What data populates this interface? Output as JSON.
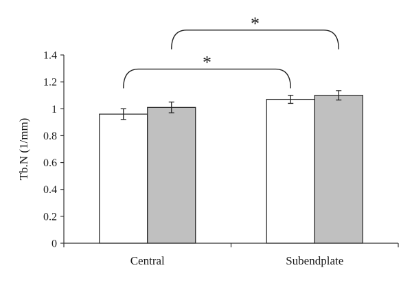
{
  "chart_data": {
    "type": "bar",
    "ylabel": "Tb.N (1/mm)",
    "xlabel": "",
    "title": "",
    "categories": [
      "Central",
      "Subendplate"
    ],
    "ylim": [
      0,
      1.4
    ],
    "yticks": [
      "0",
      "0.2",
      "0.4",
      "0.6",
      "0.8",
      "1",
      "1.2",
      "1.4"
    ],
    "grid": false,
    "legend": "none",
    "series": [
      {
        "color": "#ffffff",
        "values": [
          0.96,
          1.07
        ],
        "errors": [
          0.04,
          0.03
        ]
      },
      {
        "color": "#c0c0c0",
        "values": [
          1.01,
          1.1
        ],
        "errors": [
          0.04,
          0.035
        ]
      }
    ],
    "significance": [
      {
        "label": "*",
        "from_category": 0,
        "from_series": 0,
        "to_category": 1,
        "to_series": 0
      },
      {
        "label": "*",
        "from_category": 0,
        "from_series": 1,
        "to_category": 1,
        "to_series": 1
      }
    ]
  }
}
